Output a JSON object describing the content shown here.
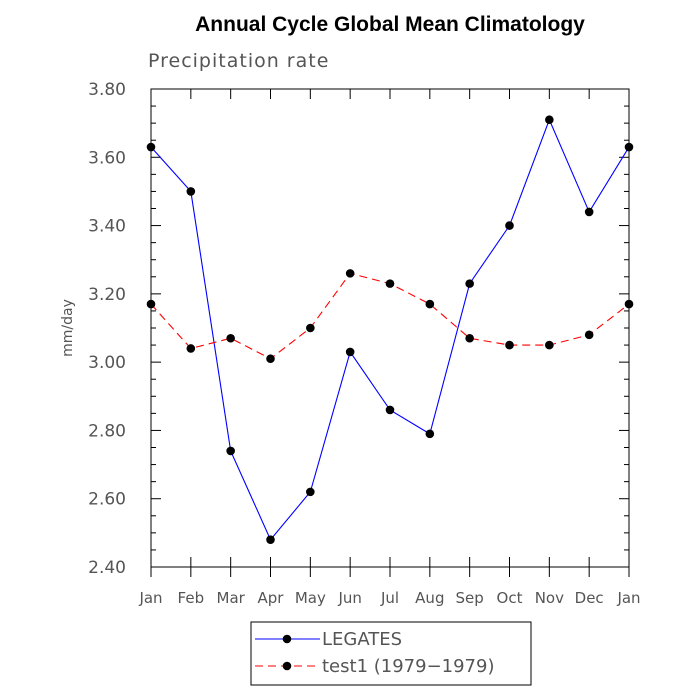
{
  "chart_data": {
    "type": "line",
    "title": "Annual Cycle Global Mean Climatology",
    "subtitle": "Precipitation rate",
    "ylabel": "mm/day",
    "xlabel": "",
    "ylim": [
      2.4,
      3.8
    ],
    "yticks": [
      "2.40",
      "2.60",
      "2.80",
      "3.00",
      "3.20",
      "3.40",
      "3.60",
      "3.80"
    ],
    "categories": [
      "Jan",
      "Feb",
      "Mar",
      "Apr",
      "May",
      "Jun",
      "Jul",
      "Aug",
      "Sep",
      "Oct",
      "Nov",
      "Dec",
      "Jan"
    ],
    "series": [
      {
        "name": "LEGATES",
        "color": "#0000ff",
        "style": "solid",
        "marker": "filled-circle",
        "values": [
          3.63,
          3.5,
          2.74,
          2.48,
          2.62,
          3.03,
          2.86,
          2.79,
          3.23,
          3.4,
          3.71,
          3.44,
          3.63
        ]
      },
      {
        "name": "test1 (1979−1979)",
        "color": "#ff0000",
        "style": "dashed",
        "marker": "filled-circle",
        "values": [
          3.17,
          3.04,
          3.07,
          3.01,
          3.1,
          3.26,
          3.23,
          3.17,
          3.07,
          3.05,
          3.05,
          3.08,
          3.17
        ]
      }
    ],
    "grid": false,
    "legend_position": "bottom"
  }
}
